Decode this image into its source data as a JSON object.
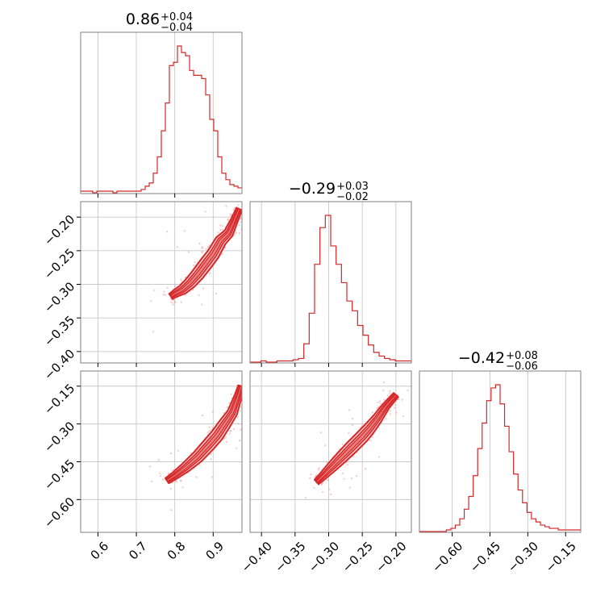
{
  "chart_data": {
    "type": "corner",
    "colors": {
      "accent": "#d62728",
      "grid": "#c8c8c8",
      "frame": "#808080"
    },
    "parameters": [
      {
        "median": "0.86",
        "upper": "+0.04",
        "lower": "−0.04",
        "range": [
          0.555,
          0.975
        ],
        "ticks": [
          0.6,
          0.7,
          0.8,
          0.9
        ],
        "tick_labels": [
          "0.6",
          "0.7",
          "0.8",
          "0.9"
        ]
      },
      {
        "median": "−0.29",
        "upper": "+0.03",
        "lower": "−0.02",
        "range": [
          -0.417,
          -0.177
        ],
        "ticks": [
          -0.4,
          -0.35,
          -0.3,
          -0.25,
          -0.2
        ],
        "tick_labels": [
          "−0.40",
          "−0.35",
          "−0.30",
          "−0.25",
          "−0.20"
        ]
      },
      {
        "median": "−0.42",
        "upper": "+0.08",
        "lower": "−0.06",
        "range": [
          -0.73,
          -0.09
        ],
        "ticks": [
          -0.6,
          -0.45,
          -0.3,
          -0.15
        ],
        "tick_labels": [
          "−0.60",
          "−0.45",
          "−0.30",
          "−0.15"
        ]
      }
    ],
    "histograms": [
      {
        "x0": 0.555,
        "x1": 0.975,
        "counts": [
          1,
          1,
          1,
          0,
          1,
          1,
          1,
          1,
          0,
          1,
          1,
          1,
          1,
          1,
          1,
          2,
          4,
          6,
          12,
          22,
          38,
          55,
          78,
          80,
          90,
          86,
          84,
          75,
          72,
          72,
          70,
          60,
          45,
          38,
          22,
          12,
          8,
          5,
          4,
          3
        ]
      },
      {
        "x0": -0.417,
        "x1": -0.177,
        "counts": [
          0,
          0,
          1,
          0,
          0,
          1,
          1,
          1,
          2,
          3,
          15,
          40,
          80,
          110,
          120,
          95,
          80,
          65,
          50,
          42,
          30,
          22,
          14,
          8,
          5,
          3,
          2,
          1,
          1,
          1
        ]
      },
      {
        "x0": -0.73,
        "x1": -0.09,
        "counts": [
          0,
          0,
          0,
          0,
          0,
          0,
          1,
          2,
          4,
          8,
          14,
          22,
          35,
          52,
          68,
          82,
          90,
          92,
          80,
          66,
          50,
          36,
          26,
          18,
          12,
          8,
          6,
          4,
          3,
          2,
          2,
          1,
          1,
          1,
          1,
          1
        ]
      }
    ],
    "pairs": [
      {
        "row": 1,
        "col": 0,
        "pts": [
          [
            0.79,
            -0.318
          ],
          [
            0.8,
            -0.314
          ],
          [
            0.82,
            -0.308
          ],
          [
            0.84,
            -0.298
          ],
          [
            0.86,
            -0.285
          ],
          [
            0.88,
            -0.27
          ],
          [
            0.9,
            -0.255
          ],
          [
            0.92,
            -0.235
          ],
          [
            0.94,
            -0.224
          ],
          [
            0.955,
            -0.205
          ],
          [
            0.968,
            -0.188
          ]
        ]
      },
      {
        "row": 2,
        "col": 0,
        "pts": [
          [
            0.78,
            -0.525
          ],
          [
            0.8,
            -0.505
          ],
          [
            0.83,
            -0.47
          ],
          [
            0.86,
            -0.43
          ],
          [
            0.89,
            -0.38
          ],
          [
            0.91,
            -0.345
          ],
          [
            0.93,
            -0.3
          ],
          [
            0.95,
            -0.255
          ],
          [
            0.965,
            -0.19
          ],
          [
            0.973,
            -0.15
          ]
        ]
      },
      {
        "row": 2,
        "col": 1,
        "pts": [
          [
            -0.318,
            -0.53
          ],
          [
            -0.31,
            -0.51
          ],
          [
            -0.295,
            -0.47
          ],
          [
            -0.28,
            -0.43
          ],
          [
            -0.265,
            -0.39
          ],
          [
            -0.25,
            -0.35
          ],
          [
            -0.24,
            -0.32
          ],
          [
            -0.228,
            -0.28
          ],
          [
            -0.215,
            -0.23
          ],
          [
            -0.2,
            -0.185
          ]
        ]
      }
    ]
  }
}
